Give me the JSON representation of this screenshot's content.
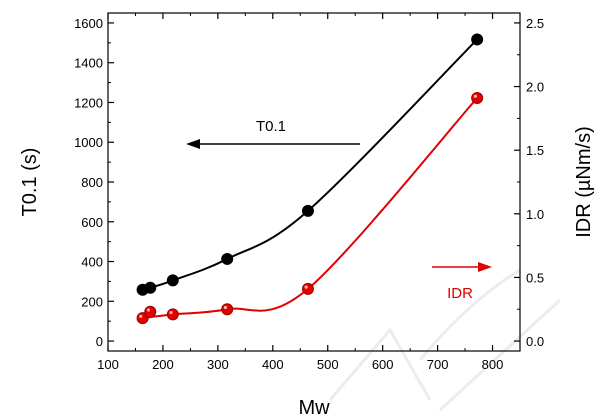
{
  "chart_data": {
    "type": "scatter",
    "xlabel": "Mw",
    "xlim": [
      100,
      850
    ],
    "xticks": [
      100,
      200,
      300,
      400,
      500,
      600,
      700,
      800
    ],
    "y_left": {
      "label": "T0.1 (s)",
      "lim": [
        -50,
        1650
      ],
      "ticks": [
        0,
        200,
        400,
        600,
        800,
        1000,
        1200,
        1400,
        1600
      ]
    },
    "y_right": {
      "label": "IDR (µNm/s)",
      "lim": [
        -0.078,
        2.578
      ],
      "ticks": [
        "0.0",
        "0.5",
        "1.0",
        "1.5",
        "2.0",
        "2.5"
      ]
    },
    "series": [
      {
        "name": "T0.1",
        "axis": "left",
        "color": "#000000",
        "x": [
          163,
          177,
          218,
          317,
          464,
          772
        ],
        "y": [
          258,
          268,
          305,
          413,
          655,
          1517
        ]
      },
      {
        "name": "IDR",
        "axis": "right",
        "color": "#e00000",
        "x": [
          163,
          177,
          218,
          317,
          464,
          772
        ],
        "y": [
          0.18,
          0.23,
          0.21,
          0.25,
          0.41,
          1.91
        ]
      }
    ],
    "annotations": [
      {
        "text": "T0.1",
        "color": "#000000",
        "arrow": "left"
      },
      {
        "text": "IDR",
        "color": "#e00000",
        "arrow": "right"
      }
    ]
  }
}
